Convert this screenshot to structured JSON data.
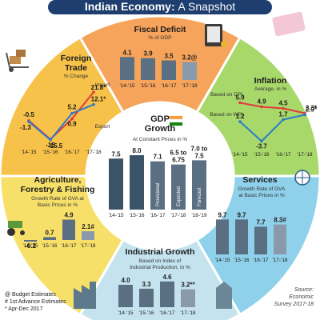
{
  "header": {
    "title_part1": "Indian Economy:",
    "title_part2": "A Snapshot"
  },
  "colors": {
    "fiscal": "#f6a35b",
    "inflation": "#a8d86a",
    "services": "#8fd0ea",
    "industrial": "#c4e3ef",
    "agri": "#f7e06a",
    "foreign": "#f7c24a",
    "center": "#ffffff",
    "header_bg": "#1d3e6e",
    "bar_dark": "#3a5367",
    "bar_mid": "#5a6f82",
    "bar_light": "#8a9aaa",
    "red": "#e23b3b",
    "blue": "#2b7cc8"
  },
  "chart_data": [
    {
      "type": "bar",
      "id": "fiscal",
      "title": "Fiscal Deficit",
      "subtitle": "% of GDP",
      "categories": [
        "'14-'15",
        "'15-'16",
        "'16-'17",
        "'17-'18"
      ],
      "values": [
        4.1,
        3.9,
        3.5,
        3.2
      ],
      "value_labels": [
        "4.1",
        "3.9",
        "3.5",
        "3.2@"
      ]
    },
    {
      "type": "line",
      "id": "inflation",
      "title": "Inflation",
      "subtitle": "Average, in %",
      "categories": [
        "'14-'15",
        "'15-'16",
        "'16-'17",
        "'17-'18"
      ],
      "series": [
        {
          "name": "Based on CPI",
          "values": [
            5.9,
            4.9,
            4.5,
            3.3
          ],
          "labels": [
            "5.9",
            "4.9",
            "4.5",
            "3.3*"
          ]
        },
        {
          "name": "Based on WPI",
          "values": [
            1.2,
            -3.7,
            1.7,
            2.9
          ],
          "labels": [
            "1.2",
            "-3.7",
            "1.7",
            "2.9*"
          ]
        }
      ]
    },
    {
      "type": "bar",
      "id": "services",
      "title": "Services",
      "subtitle_lines": [
        "Growth Rate of GVA",
        "at Basic Prices in %"
      ],
      "categories": [
        "'14-'15",
        "'15-'16",
        "'16-'17",
        "'17-'18"
      ],
      "values": [
        9.7,
        9.7,
        7.7,
        8.3
      ],
      "value_labels": [
        "9.7",
        "9.7",
        "7.7",
        "8.3#"
      ]
    },
    {
      "type": "bar",
      "id": "industrial",
      "title": "Industrial Growth",
      "subtitle_lines": [
        "Based on Index of",
        "Industrial Production, in %"
      ],
      "categories": [
        "'14-'15",
        "'15-'16",
        "'16-'17",
        "'17-'18"
      ],
      "values": [
        4.0,
        3.3,
        4.6,
        3.2
      ],
      "value_labels": [
        "4.0",
        "3.3",
        "4.6",
        "3.2**"
      ]
    },
    {
      "type": "bar",
      "id": "agri",
      "title_lines": [
        "Agriculture,",
        "Forestry & Fishing"
      ],
      "subtitle_lines": [
        "Growth Rate of GVA at",
        "Basic Prices in %"
      ],
      "categories": [
        "'14-'15",
        "'15-'16",
        "'16-'17",
        "'17-'18"
      ],
      "values": [
        -0.2,
        0.7,
        4.9,
        2.1
      ],
      "value_labels": [
        "-0.2",
        "0.7",
        "4.9",
        "2.1#"
      ]
    },
    {
      "type": "line",
      "id": "foreign",
      "title_lines": [
        "Foreign",
        "Trade"
      ],
      "subtitle": "% Change",
      "categories": [
        "'14-'15",
        "'15-'16",
        "'16-'17",
        "'17-'18"
      ],
      "series": [
        {
          "name": "Import",
          "values": [
            -0.5,
            -15.0,
            0.9,
            21.8
          ],
          "labels": [
            "-0.5",
            "-15",
            "0.9",
            "21.8*"
          ]
        },
        {
          "name": "Export",
          "values": [
            -1.3,
            -15.5,
            5.2,
            12.1
          ],
          "labels": [
            "-1.3",
            "-15.5",
            "5.2",
            "12.1*"
          ]
        }
      ]
    },
    {
      "type": "bar",
      "id": "gdp",
      "title_lines": [
        "GDP",
        "Growth"
      ],
      "subtitle": "At Constant Prices in %",
      "categories": [
        "'14-'15",
        "'15-'16",
        "'16-'17",
        "'17-'18",
        "'18-'19"
      ],
      "values": [
        7.5,
        8.0,
        7.1,
        6.63,
        7.25
      ],
      "value_labels": [
        "7.5",
        "8.0",
        "7.1",
        "6.5 to 6.75",
        "7.0 to 7.5"
      ],
      "bar_notes": [
        "",
        "",
        "Provisional",
        "Expected",
        "Forecast"
      ]
    }
  ],
  "footnotes": [
    "@ Budget Estimates",
    "# 1st Advance Estimates",
    "* Apr-Dec 2017"
  ],
  "source_lines": [
    "Source:",
    "Economic",
    "Survey 2017-18"
  ]
}
